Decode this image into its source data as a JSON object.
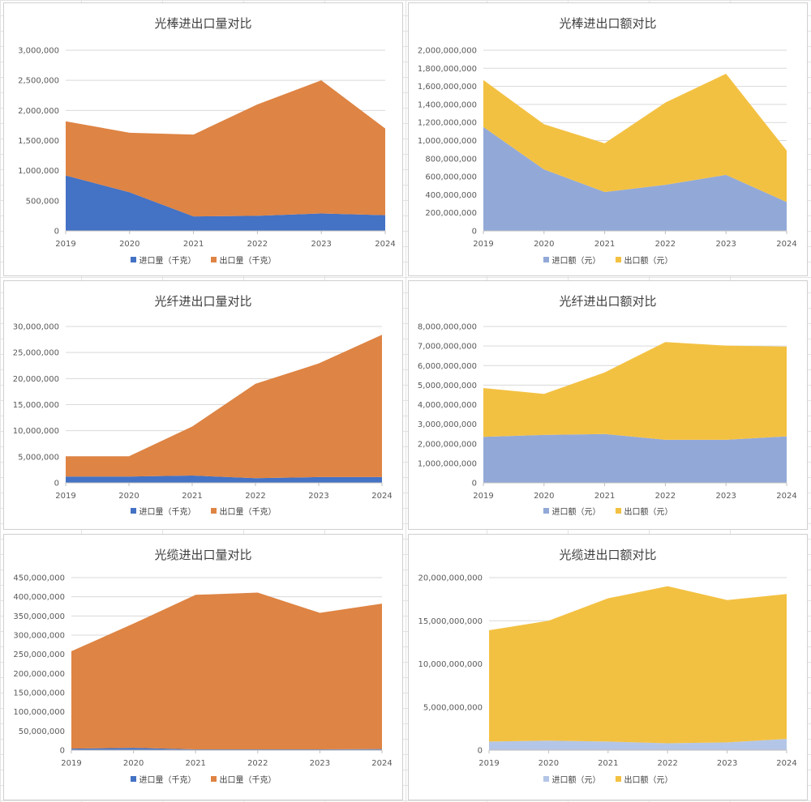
{
  "chart_data": [
    {
      "type": "area",
      "stacked": true,
      "title": "光棒进出口量对比",
      "categories": [
        "2019",
        "2020",
        "2021",
        "2022",
        "2023",
        "2024"
      ],
      "ylim": [
        0,
        3000000
      ],
      "yticks": [
        0,
        500000,
        1000000,
        1500000,
        2000000,
        2500000,
        3000000
      ],
      "grid": true,
      "legend": "bottom",
      "series": [
        {
          "name": "进口量（千克）",
          "color": "#4472C4",
          "values": [
            920000,
            640000,
            240000,
            250000,
            290000,
            260000
          ]
        },
        {
          "name": "出口量（千克）",
          "color": "#DE8444",
          "values": [
            900000,
            990000,
            1360000,
            1850000,
            2210000,
            1440000
          ]
        }
      ]
    },
    {
      "type": "area",
      "stacked": true,
      "title": "光棒进出口额对比",
      "categories": [
        "2019",
        "2020",
        "2021",
        "2022",
        "2023",
        "2024"
      ],
      "ylim": [
        0,
        2000000000
      ],
      "yticks": [
        0,
        200000000,
        400000000,
        600000000,
        800000000,
        1000000000,
        1200000000,
        1400000000,
        1600000000,
        1800000000,
        2000000000
      ],
      "grid": true,
      "legend": "bottom",
      "series": [
        {
          "name": "进口额（元）",
          "color": "#92A9D8",
          "values": [
            1150000000,
            680000000,
            430000000,
            510000000,
            620000000,
            320000000
          ]
        },
        {
          "name": "出口额（元）",
          "color": "#F3C142",
          "values": [
            520000000,
            500000000,
            540000000,
            910000000,
            1120000000,
            570000000
          ]
        }
      ]
    },
    {
      "type": "area",
      "stacked": true,
      "title": "光纤进出口量对比",
      "categories": [
        "2019",
        "2020",
        "2021",
        "2022",
        "2023",
        "2024"
      ],
      "ylim": [
        0,
        30000000
      ],
      "yticks": [
        0,
        5000000,
        10000000,
        15000000,
        20000000,
        25000000,
        30000000
      ],
      "grid": true,
      "legend": "bottom",
      "series": [
        {
          "name": "进口量（千克）",
          "color": "#4472C4",
          "values": [
            1200000,
            1200000,
            1400000,
            900000,
            1100000,
            1100000
          ]
        },
        {
          "name": "出口量（千克）",
          "color": "#DE8444",
          "values": [
            3900000,
            3900000,
            9400000,
            18100000,
            21800000,
            27300000
          ]
        }
      ]
    },
    {
      "type": "area",
      "stacked": true,
      "title": "光纤进出口额对比",
      "categories": [
        "2019",
        "2020",
        "2021",
        "2022",
        "2023",
        "2024"
      ],
      "ylim": [
        0,
        8000000000
      ],
      "yticks": [
        0,
        1000000000,
        2000000000,
        3000000000,
        4000000000,
        5000000000,
        6000000000,
        7000000000,
        8000000000
      ],
      "grid": true,
      "legend": "bottom",
      "series": [
        {
          "name": "进口额（元）",
          "color": "#92A9D8",
          "values": [
            2350000000,
            2450000000,
            2500000000,
            2200000000,
            2200000000,
            2380000000
          ]
        },
        {
          "name": "出口额（元）",
          "color": "#F3C142",
          "values": [
            2500000000,
            2100000000,
            3150000000,
            5000000000,
            4820000000,
            4590000000
          ]
        }
      ]
    },
    {
      "type": "area",
      "stacked": true,
      "title": "光缆进出口量对比",
      "categories": [
        "2019",
        "2020",
        "2021",
        "2022",
        "2023",
        "2024"
      ],
      "ylim": [
        0,
        450000000
      ],
      "yticks": [
        0,
        50000000,
        100000000,
        150000000,
        200000000,
        250000000,
        300000000,
        350000000,
        400000000,
        450000000
      ],
      "grid": true,
      "legend": "bottom",
      "series": [
        {
          "name": "进口量（千克）",
          "color": "#4472C4",
          "values": [
            4000000,
            6000000,
            2000000,
            2000000,
            2000000,
            3000000
          ]
        },
        {
          "name": "出口量（千克）",
          "color": "#DE8444",
          "values": [
            254000000,
            324000000,
            403000000,
            409000000,
            356000000,
            379000000
          ]
        }
      ]
    },
    {
      "type": "area",
      "stacked": true,
      "title": "光缆进出口额对比",
      "categories": [
        "2019",
        "2020",
        "2021",
        "2022",
        "2023",
        "2024"
      ],
      "ylim": [
        0,
        20000000000
      ],
      "yticks": [
        0,
        5000000000,
        10000000000,
        15000000000,
        20000000000
      ],
      "grid": true,
      "legend": "bottom",
      "series": [
        {
          "name": "进口额（元）",
          "color": "#B4C6E7",
          "values": [
            1000000000,
            1100000000,
            1000000000,
            800000000,
            900000000,
            1300000000
          ]
        },
        {
          "name": "出口额（元）",
          "color": "#F3C142",
          "values": [
            12900000000,
            13900000000,
            16600000000,
            18200000000,
            16500000000,
            16800000000
          ]
        }
      ]
    }
  ]
}
